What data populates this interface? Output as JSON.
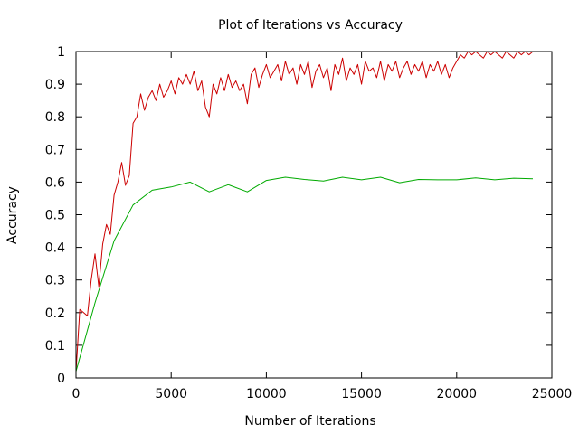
{
  "chart_data": {
    "type": "line",
    "title": "Plot of Iterations vs Accuracy",
    "xlabel": "Number of Iterations",
    "ylabel": "Accuracy",
    "xlim": [
      0,
      25000
    ],
    "ylim": [
      0,
      1
    ],
    "xticks": [
      0,
      5000,
      10000,
      15000,
      20000,
      25000
    ],
    "xtick_labels": [
      "0",
      "5000",
      "10000",
      "15000",
      "20000",
      "25000"
    ],
    "yticks": [
      0,
      0.1,
      0.2,
      0.3,
      0.4,
      0.5,
      0.6,
      0.7,
      0.8,
      0.9,
      1
    ],
    "ytick_labels": [
      "0",
      "0.1",
      "0.2",
      "0.3",
      "0.4",
      "0.5",
      "0.6",
      "0.7",
      "0.8",
      "0.9",
      "1"
    ],
    "grid": false,
    "legend": "none",
    "series": [
      {
        "color": "#cc0000",
        "x": [
          0,
          200,
          400,
          600,
          800,
          1000,
          1200,
          1400,
          1600,
          1800,
          2000,
          2200,
          2400,
          2600,
          2800,
          3000,
          3200,
          3400,
          3600,
          3800,
          4000,
          4200,
          4400,
          4600,
          4800,
          5000,
          5200,
          5400,
          5600,
          5800,
          6000,
          6200,
          6400,
          6600,
          6800,
          7000,
          7200,
          7400,
          7600,
          7800,
          8000,
          8200,
          8400,
          8600,
          8800,
          9000,
          9200,
          9400,
          9600,
          9800,
          10000,
          10200,
          10400,
          10600,
          10800,
          11000,
          11200,
          11400,
          11600,
          11800,
          12000,
          12200,
          12400,
          12600,
          12800,
          13000,
          13200,
          13400,
          13600,
          13800,
          14000,
          14200,
          14400,
          14600,
          14800,
          15000,
          15200,
          15400,
          15600,
          15800,
          16000,
          16200,
          16400,
          16600,
          16800,
          17000,
          17200,
          17400,
          17600,
          17800,
          18000,
          18200,
          18400,
          18600,
          18800,
          19000,
          19200,
          19400,
          19600,
          19800,
          20000,
          20200,
          20400,
          20600,
          20800,
          21000,
          21200,
          21400,
          21600,
          21800,
          22000,
          22200,
          22400,
          22600,
          22800,
          23000,
          23200,
          23400,
          23600,
          23800,
          24000
        ],
        "values": [
          0.02,
          0.21,
          0.2,
          0.19,
          0.3,
          0.38,
          0.28,
          0.41,
          0.47,
          0.44,
          0.56,
          0.6,
          0.66,
          0.59,
          0.62,
          0.78,
          0.8,
          0.87,
          0.82,
          0.86,
          0.88,
          0.85,
          0.9,
          0.86,
          0.88,
          0.91,
          0.87,
          0.92,
          0.9,
          0.93,
          0.9,
          0.94,
          0.88,
          0.91,
          0.83,
          0.8,
          0.9,
          0.87,
          0.92,
          0.88,
          0.93,
          0.89,
          0.91,
          0.88,
          0.9,
          0.84,
          0.93,
          0.95,
          0.89,
          0.93,
          0.96,
          0.92,
          0.94,
          0.96,
          0.91,
          0.97,
          0.93,
          0.95,
          0.9,
          0.96,
          0.93,
          0.97,
          0.89,
          0.94,
          0.96,
          0.92,
          0.95,
          0.88,
          0.96,
          0.93,
          0.98,
          0.91,
          0.95,
          0.93,
          0.96,
          0.9,
          0.97,
          0.94,
          0.95,
          0.92,
          0.97,
          0.91,
          0.96,
          0.94,
          0.97,
          0.92,
          0.95,
          0.97,
          0.93,
          0.96,
          0.94,
          0.97,
          0.92,
          0.96,
          0.94,
          0.97,
          0.93,
          0.96,
          0.92,
          0.95,
          0.97,
          0.99,
          0.98,
          1.0,
          0.99,
          1.0,
          0.99,
          0.98,
          1.0,
          0.99,
          1.0,
          0.99,
          0.98,
          1.0,
          0.99,
          0.98,
          1.0,
          0.99,
          1.0,
          0.99,
          1.0
        ]
      },
      {
        "color": "#00aa00",
        "x": [
          0,
          1000,
          2000,
          3000,
          4000,
          5000,
          6000,
          7000,
          8000,
          9000,
          10000,
          11000,
          12000,
          13000,
          14000,
          15000,
          16000,
          17000,
          18000,
          19000,
          20000,
          21000,
          22000,
          23000,
          24000
        ],
        "values": [
          0.02,
          0.23,
          0.42,
          0.53,
          0.575,
          0.585,
          0.6,
          0.57,
          0.592,
          0.57,
          0.605,
          0.615,
          0.608,
          0.603,
          0.615,
          0.607,
          0.615,
          0.598,
          0.608,
          0.607,
          0.607,
          0.613,
          0.607,
          0.612,
          0.61
        ]
      }
    ]
  }
}
